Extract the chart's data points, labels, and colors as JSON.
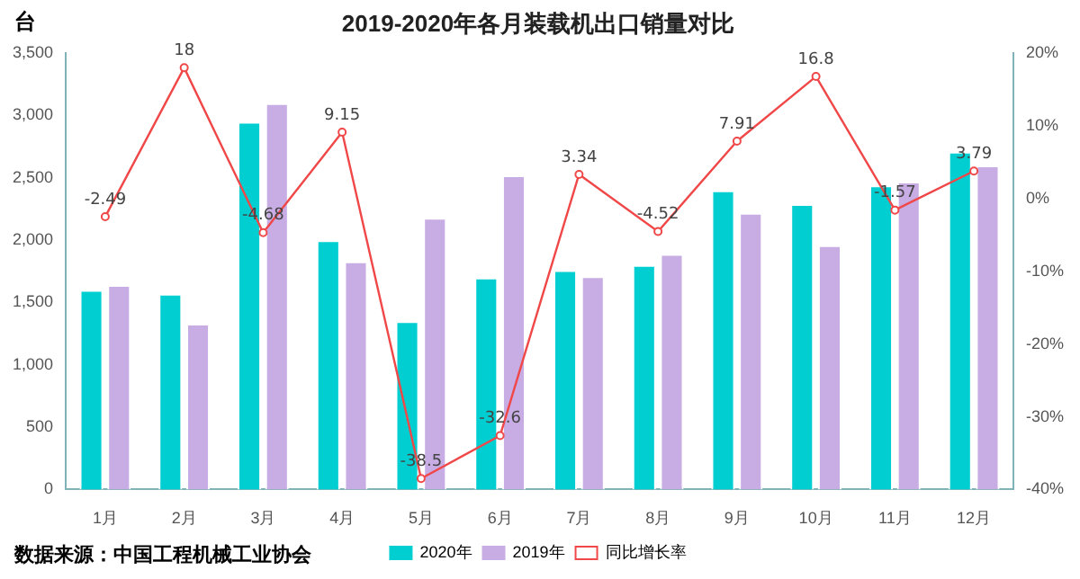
{
  "chart_data": {
    "type": "bar",
    "title": "2019-2020年各月装载机出口销量对比",
    "ylabel": "台",
    "categories": [
      "1月",
      "2月",
      "3月",
      "4月",
      "5月",
      "6月",
      "7月",
      "8月",
      "9月",
      "10月",
      "11月",
      "12月"
    ],
    "series": [
      {
        "name": "2020年",
        "color": "#00ced1",
        "values": [
          1600,
          1570,
          2950,
          2000,
          1350,
          1700,
          1760,
          1800,
          2400,
          2290,
          2440,
          2710
        ]
      },
      {
        "name": "2019年",
        "color": "#c8ace4",
        "values": [
          1640,
          1330,
          3100,
          1830,
          2180,
          2520,
          1710,
          1890,
          2220,
          1960,
          2470,
          2600
        ]
      },
      {
        "name": "同比增长率",
        "type": "line",
        "axis": "y2",
        "color": "#f04848",
        "marker": "circle",
        "values": [
          -2.49,
          18,
          -4.68,
          9.15,
          -38.5,
          -32.6,
          3.34,
          -4.52,
          7.91,
          16.8,
          -1.57,
          3.79
        ],
        "value_labels": [
          "-2.49",
          "18",
          "-4.68",
          "9.15",
          "-38.5",
          "-32.6",
          "3.34",
          "-4.52",
          "7.91",
          "16.8",
          "-1.57",
          "3.79"
        ]
      }
    ],
    "ylim": [
      0,
      3500
    ],
    "yticks": [
      0,
      500,
      {
        "value": 1000,
        "label": "1,000"
      },
      {
        "value": 1500,
        "label": "1,500"
      },
      {
        "value": 2000,
        "label": "2,000"
      },
      {
        "value": 2500,
        "label": "2,500"
      },
      {
        "value": 3000,
        "label": "3,000"
      },
      {
        "value": 3500,
        "label": "3,500"
      }
    ],
    "y2lim": [
      -40,
      20
    ],
    "y2ticks": [
      {
        "value": -40,
        "label": "-40%"
      },
      {
        "value": -30,
        "label": "-30%"
      },
      {
        "value": -20,
        "label": "-20%"
      },
      {
        "value": -10,
        "label": "-10%"
      },
      {
        "value": 0,
        "label": "0%"
      },
      {
        "value": 10,
        "label": "10%"
      },
      {
        "value": 20,
        "label": "20%"
      }
    ],
    "grid": false,
    "legend": "bottom",
    "annotations": [
      "数据来源：中国工程机械工业协会"
    ]
  }
}
